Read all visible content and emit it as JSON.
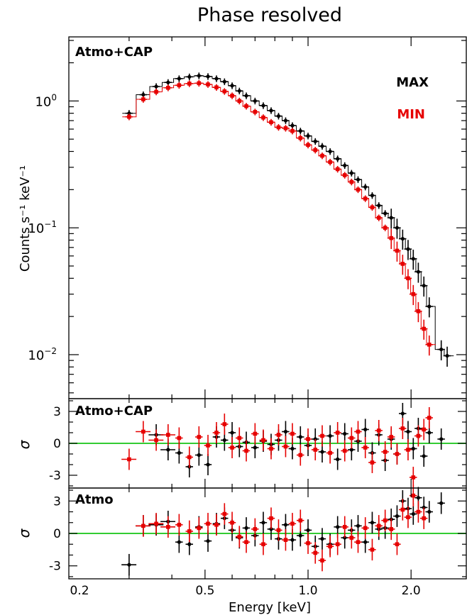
{
  "title": "Phase resolved",
  "chart_data": [
    {
      "type": "scatter",
      "panel": "spectrum",
      "panel_label": "Atmo+CAP",
      "ylabel": "Counts s⁻¹ keV⁻¹",
      "xlabel": "Energy  [keV]",
      "x_scale": "log",
      "y_scale": "log",
      "xlim": [
        0.2,
        2.9
      ],
      "ylim": [
        0.0045,
        3.2
      ],
      "y_ticks": [
        {
          "value": 1,
          "base": "10",
          "exp": "0"
        },
        {
          "value": 0.1,
          "base": "10",
          "exp": "−1"
        },
        {
          "value": 0.01,
          "base": "10",
          "exp": "−2"
        }
      ],
      "legend_position": "top-right",
      "series": [
        {
          "name": "MAX",
          "color": "#000000",
          "x": [
            0.3,
            0.33,
            0.36,
            0.39,
            0.42,
            0.45,
            0.48,
            0.51,
            0.54,
            0.57,
            0.6,
            0.63,
            0.66,
            0.7,
            0.74,
            0.78,
            0.82,
            0.86,
            0.9,
            0.95,
            1.0,
            1.05,
            1.1,
            1.16,
            1.22,
            1.28,
            1.34,
            1.4,
            1.47,
            1.54,
            1.61,
            1.68,
            1.75,
            1.82,
            1.89,
            1.96,
            2.03,
            2.1,
            2.18,
            2.26,
            2.45,
            2.55
          ],
          "y": [
            0.8,
            1.12,
            1.3,
            1.4,
            1.5,
            1.55,
            1.58,
            1.56,
            1.5,
            1.42,
            1.32,
            1.2,
            1.1,
            1.0,
            0.92,
            0.84,
            0.76,
            0.7,
            0.64,
            0.58,
            0.53,
            0.48,
            0.44,
            0.4,
            0.35,
            0.31,
            0.27,
            0.24,
            0.21,
            0.18,
            0.15,
            0.13,
            0.12,
            0.1,
            0.082,
            0.068,
            0.057,
            0.045,
            0.035,
            0.024,
            0.011,
            0.0098
          ]
        },
        {
          "name": "MIN",
          "color": "#e60000",
          "x": [
            0.3,
            0.33,
            0.36,
            0.39,
            0.42,
            0.45,
            0.48,
            0.51,
            0.54,
            0.57,
            0.6,
            0.63,
            0.66,
            0.7,
            0.74,
            0.78,
            0.82,
            0.86,
            0.9,
            0.95,
            1.0,
            1.05,
            1.1,
            1.16,
            1.22,
            1.28,
            1.34,
            1.4,
            1.47,
            1.54,
            1.61,
            1.68,
            1.75,
            1.82,
            1.89,
            1.96,
            2.03,
            2.1,
            2.18,
            2.26
          ],
          "y": [
            0.75,
            1.03,
            1.18,
            1.27,
            1.33,
            1.37,
            1.38,
            1.35,
            1.28,
            1.19,
            1.1,
            1.0,
            0.91,
            0.82,
            0.74,
            0.68,
            0.62,
            0.61,
            0.58,
            0.51,
            0.45,
            0.41,
            0.37,
            0.33,
            0.29,
            0.26,
            0.23,
            0.2,
            0.17,
            0.145,
            0.12,
            0.1,
            0.083,
            0.066,
            0.052,
            0.04,
            0.03,
            0.022,
            0.016,
            0.012
          ]
        }
      ]
    },
    {
      "type": "scatter",
      "panel": "residuals",
      "panel_label": "Atmo+CAP",
      "ylabel": "σ",
      "x_scale": "log",
      "xlim": [
        0.2,
        2.9
      ],
      "ylim": [
        -4.2,
        4.2
      ],
      "y_ticks": [
        {
          "value": 3,
          "label": "3"
        },
        {
          "value": 0,
          "label": "0"
        },
        {
          "value": -3,
          "label": "-3"
        }
      ],
      "zero_line_color": "#33cc33",
      "series": [
        {
          "name": "MAX",
          "color": "#000000",
          "x": [
            0.36,
            0.39,
            0.42,
            0.45,
            0.48,
            0.51,
            0.54,
            0.57,
            0.6,
            0.63,
            0.66,
            0.7,
            0.74,
            0.78,
            0.82,
            0.86,
            0.9,
            0.95,
            1.0,
            1.05,
            1.1,
            1.16,
            1.22,
            1.28,
            1.34,
            1.4,
            1.47,
            1.54,
            1.61,
            1.68,
            1.75,
            1.82,
            1.89,
            1.96,
            2.03,
            2.1,
            2.18,
            2.26,
            2.45
          ],
          "y": [
            0.8,
            -0.6,
            -0.9,
            -2.2,
            -1.1,
            -2.0,
            0.6,
            0.3,
            1.0,
            -0.3,
            0.1,
            -0.4,
            0.2,
            -0.1,
            0.3,
            1.1,
            -0.5,
            0.6,
            -0.2,
            0.4,
            -0.8,
            0.7,
            -1.5,
            0.9,
            -0.6,
            0.2,
            1.3,
            -0.9,
            0.8,
            -1.6,
            0.4,
            -1.0,
            2.8,
            1.1,
            -0.5,
            1.4,
            -1.2,
            1.0,
            0.4
          ]
        },
        {
          "name": "MIN",
          "color": "#e60000",
          "x": [
            0.3,
            0.33,
            0.36,
            0.39,
            0.42,
            0.45,
            0.48,
            0.51,
            0.54,
            0.57,
            0.6,
            0.63,
            0.66,
            0.7,
            0.74,
            0.78,
            0.82,
            0.86,
            0.9,
            0.95,
            1.0,
            1.05,
            1.1,
            1.16,
            1.22,
            1.28,
            1.34,
            1.4,
            1.47,
            1.54,
            1.61,
            1.68,
            1.75,
            1.82,
            1.89,
            1.96,
            2.03,
            2.1,
            2.18,
            2.26
          ],
          "y": [
            -1.5,
            1.1,
            0.3,
            0.8,
            0.5,
            -1.3,
            0.6,
            -0.2,
            1.0,
            1.8,
            -0.4,
            0.5,
            -0.7,
            0.9,
            0.3,
            -0.5,
            0.8,
            -0.3,
            0.9,
            -1.1,
            0.4,
            -0.6,
            0.7,
            -0.9,
            1.0,
            -0.7,
            0.5,
            1.1,
            -0.4,
            -1.8,
            1.2,
            -0.8,
            0.6,
            -1.0,
            1.4,
            -0.6,
            -3.2,
            0.7,
            1.3,
            2.4
          ]
        }
      ]
    },
    {
      "type": "scatter",
      "panel": "residuals",
      "panel_label": "Atmo",
      "ylabel": "σ",
      "xlabel": "Energy  [keV]",
      "x_scale": "log",
      "xlim": [
        0.2,
        2.9
      ],
      "ylim": [
        -4.2,
        4.2
      ],
      "x_ticks": [
        {
          "value": 0.2,
          "label": "0.2"
        },
        {
          "value": 0.5,
          "label": "0.5"
        },
        {
          "value": 1.0,
          "label": "1.0"
        },
        {
          "value": 2.0,
          "label": "2.0"
        }
      ],
      "y_ticks": [
        {
          "value": 3,
          "label": "3"
        },
        {
          "value": 0,
          "label": "0"
        },
        {
          "value": -3,
          "label": "-3"
        }
      ],
      "zero_line_color": "#33cc33",
      "series": [
        {
          "name": "MAX",
          "color": "#000000",
          "x": [
            0.3,
            0.33,
            0.36,
            0.39,
            0.42,
            0.45,
            0.48,
            0.51,
            0.54,
            0.57,
            0.6,
            0.63,
            0.66,
            0.7,
            0.74,
            0.78,
            0.82,
            0.86,
            0.9,
            0.95,
            1.0,
            1.05,
            1.1,
            1.16,
            1.22,
            1.28,
            1.34,
            1.4,
            1.47,
            1.54,
            1.61,
            1.68,
            1.75,
            1.82,
            1.89,
            1.96,
            2.03,
            2.1,
            2.18,
            2.26,
            2.45
          ],
          "y": [
            -2.9,
            0.7,
            0.8,
            1.1,
            -0.8,
            -1.0,
            0.6,
            -0.7,
            0.9,
            1.4,
            0.3,
            -0.4,
            0.5,
            -0.2,
            1.0,
            0.4,
            -0.5,
            0.8,
            -0.6,
            -0.2,
            0.3,
            -1.2,
            -0.5,
            -1.0,
            0.6,
            -0.4,
            0.3,
            0.7,
            -0.8,
            1.0,
            0.4,
            0.5,
            1.3,
            1.6,
            3.0,
            2.3,
            1.8,
            3.3,
            2.4,
            2.0,
            2.8
          ]
        },
        {
          "name": "MIN",
          "color": "#e60000",
          "x": [
            0.33,
            0.36,
            0.39,
            0.42,
            0.45,
            0.48,
            0.51,
            0.54,
            0.57,
            0.6,
            0.63,
            0.66,
            0.7,
            0.74,
            0.78,
            0.82,
            0.86,
            0.9,
            0.95,
            1.0,
            1.05,
            1.1,
            1.16,
            1.22,
            1.28,
            1.34,
            1.4,
            1.47,
            1.54,
            1.61,
            1.68,
            1.75,
            1.82,
            1.89,
            1.96,
            2.03,
            2.1,
            2.18
          ],
          "y": [
            0.7,
            0.9,
            0.6,
            0.8,
            0.2,
            0.5,
            0.9,
            0.8,
            1.8,
            1.0,
            -0.3,
            -0.8,
            0.4,
            -1.0,
            1.4,
            0.3,
            -0.6,
            0.9,
            1.2,
            -0.9,
            -1.8,
            -2.5,
            -1.2,
            -1.0,
            0.6,
            -0.4,
            -0.8,
            0.5,
            -1.5,
            0.7,
            1.2,
            0.4,
            -1.0,
            2.2,
            1.5,
            3.5,
            2.0,
            1.4
          ]
        }
      ]
    }
  ]
}
